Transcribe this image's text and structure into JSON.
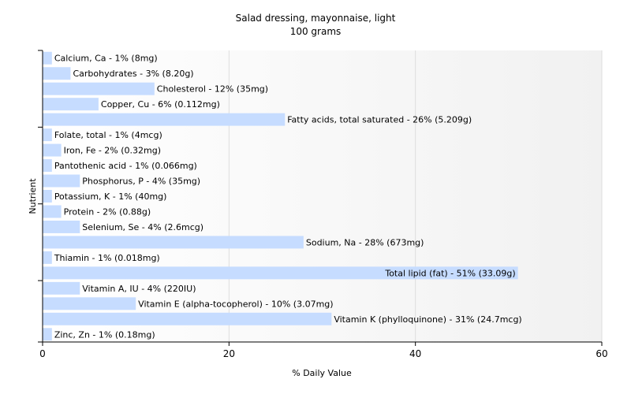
{
  "chart_data": {
    "type": "bar",
    "orientation": "horizontal",
    "title": "Salad dressing, mayonnaise, light",
    "subtitle": "100 grams",
    "xlabel": "% Daily Value",
    "ylabel": "Nutrient",
    "xlim": [
      0,
      60
    ],
    "xticks": [
      "0",
      "20",
      "40",
      "60"
    ],
    "grid": "vertical",
    "bar_color": "#c6dcff",
    "categories": [
      "Calcium, Ca",
      "Carbohydrates",
      "Cholesterol",
      "Copper, Cu",
      "Fatty acids, total saturated",
      "Folate, total",
      "Iron, Fe",
      "Pantothenic acid",
      "Phosphorus, P",
      "Potassium, K",
      "Protein",
      "Selenium, Se",
      "Sodium, Na",
      "Thiamin",
      "Total lipid (fat)",
      "Vitamin A, IU",
      "Vitamin E (alpha-tocopherol)",
      "Vitamin K (phylloquinone)",
      "Zinc, Zn"
    ],
    "values": [
      1,
      3,
      12,
      6,
      26,
      1,
      2,
      1,
      4,
      1,
      2,
      4,
      28,
      1,
      51,
      4,
      10,
      31,
      1
    ],
    "data_labels": [
      "Calcium, Ca - 1% (8mg)",
      "Carbohydrates - 3% (8.20g)",
      "Cholesterol - 12% (35mg)",
      "Copper, Cu - 6% (0.112mg)",
      "Fatty acids, total saturated - 26% (5.209g)",
      "Folate, total - 1% (4mcg)",
      "Iron, Fe - 2% (0.32mg)",
      "Pantothenic acid - 1% (0.066mg)",
      "Phosphorus, P - 4% (35mg)",
      "Potassium, K - 1% (40mg)",
      "Protein - 2% (0.88g)",
      "Selenium, Se - 4% (2.6mcg)",
      "Sodium, Na - 28% (673mg)",
      "Thiamin - 1% (0.018mg)",
      "Total lipid (fat) - 51% (33.09g)",
      "Vitamin A, IU - 4% (220IU)",
      "Vitamin E (alpha-tocopherol) - 10% (3.07mg)",
      "Vitamin K (phylloquinone) - 31% (24.7mcg)",
      "Zinc, Zn - 1% (0.18mg)"
    ]
  }
}
